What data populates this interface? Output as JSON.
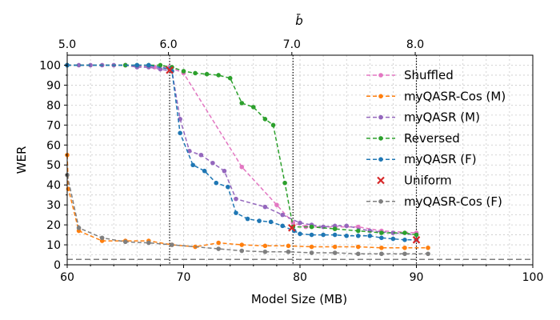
{
  "chart_data": {
    "type": "line",
    "xlabel": "Model Size (MB)",
    "ylabel": "WER",
    "top_xlabel": "b̄",
    "xlim": [
      60,
      100
    ],
    "ylim": [
      0,
      105
    ],
    "x_ticks": [
      60,
      70,
      80,
      90,
      100
    ],
    "y_ticks": [
      0,
      10,
      20,
      30,
      40,
      50,
      60,
      70,
      80,
      90,
      100
    ],
    "top_ticks": [
      {
        "label": "5.0",
        "x": 60
      },
      {
        "label": "6.0",
        "x": 68.7
      },
      {
        "label": "7.0",
        "x": 79.3
      },
      {
        "label": "8.0",
        "x": 89.9
      }
    ],
    "grid": true,
    "legend_position": "right",
    "vlines": [
      68.8,
      79.4,
      90.0
    ],
    "hline": 2.7,
    "series": [
      {
        "name": "Shuffled",
        "color": "#e377c2",
        "marker": "circle",
        "dashed": true,
        "x": [
          60.0,
          65.0,
          67.5,
          68.8,
          70.0,
          75.0,
          78.0,
          79.4,
          80.5,
          83.0,
          85.0,
          87.0,
          90.0
        ],
        "y": [
          100,
          100,
          99,
          99,
          96,
          49,
          30,
          21,
          19,
          19,
          19,
          17,
          16
        ]
      },
      {
        "name": "myQASR-Cos (M)",
        "color": "#ff7f0e",
        "marker": "circle",
        "dashed": true,
        "x": [
          60.0,
          60.1,
          61.0,
          63.0,
          65.0,
          67.0,
          69.0,
          71.0,
          73.0,
          75.0,
          77.0,
          79.0,
          81.0,
          83.0,
          85.0,
          87.0,
          89.0,
          91.0
        ],
        "y": [
          55,
          38,
          17,
          12,
          12,
          12,
          10,
          9,
          11,
          10,
          9.5,
          9.5,
          9,
          9,
          9,
          8.5,
          8.5,
          8.5
        ]
      },
      {
        "name": "myQASR (M)",
        "color": "#9467bd",
        "marker": "circle",
        "dashed": true,
        "x": [
          60.0,
          61.0,
          62.0,
          63.0,
          64.0,
          65.0,
          66.0,
          67.0,
          68.0,
          69.0,
          69.7,
          70.5,
          71.5,
          72.5,
          73.5,
          74.5,
          77.0,
          78.5,
          80.0,
          81.0,
          82.0,
          83.0,
          84.0,
          86.0,
          88.0,
          90.0
        ],
        "y": [
          100,
          100,
          100,
          100,
          100,
          100,
          99,
          99,
          98,
          97,
          73,
          57,
          55,
          51,
          47,
          33,
          29,
          25,
          21,
          20,
          19,
          19.5,
          19.5,
          17,
          16,
          15
        ]
      },
      {
        "name": "Reversed",
        "color": "#2ca02c",
        "marker": "circle",
        "dashed": true,
        "x": [
          60.0,
          65.0,
          66.0,
          67.0,
          68.0,
          69.0,
          70.0,
          71.0,
          72.0,
          73.0,
          74.0,
          75.0,
          76.0,
          77.0,
          77.7,
          78.7,
          79.4,
          81.0,
          83.0,
          85.0,
          87.0,
          89.0,
          90.0
        ],
        "y": [
          100,
          100,
          100,
          100,
          100,
          99,
          97,
          96,
          95.5,
          95,
          93.5,
          81,
          79,
          73,
          70,
          41,
          19,
          19,
          18,
          17,
          16,
          16,
          15
        ]
      },
      {
        "name": "myQASR (F)",
        "color": "#1f77b4",
        "marker": "circle",
        "dashed": true,
        "x": [
          60.0,
          66.0,
          67.0,
          68.8,
          69.0,
          69.7,
          70.8,
          71.8,
          72.8,
          73.8,
          74.5,
          75.5,
          76.5,
          77.5,
          78.5,
          79.5,
          80.0,
          81.0,
          82.0,
          83.0,
          84.0,
          85.0,
          86.0,
          87.0,
          88.0,
          89.0,
          90.0
        ],
        "y": [
          100,
          100,
          100,
          98,
          97,
          66,
          50,
          47,
          41,
          39,
          26,
          23,
          22,
          21.5,
          19.5,
          17,
          15.5,
          15,
          15,
          15,
          14.5,
          14.5,
          14.5,
          13.5,
          13,
          12.5,
          12.5
        ]
      },
      {
        "name": "Uniform",
        "color": "#d62728",
        "marker": "x",
        "dashed": false,
        "x": [
          68.8,
          79.3,
          90.0
        ],
        "y": [
          97.5,
          18.5,
          12.5
        ]
      },
      {
        "name": "myQASR-Cos (F)",
        "color": "#7f7f7f",
        "marker": "circle",
        "dashed": true,
        "x": [
          60.0,
          61.0,
          63.0,
          65.0,
          67.0,
          69.0,
          73.0,
          75.0,
          77.0,
          79.0,
          81.0,
          83.0,
          85.0,
          87.0,
          89.0,
          91.0
        ],
        "y": [
          45,
          18.5,
          13.5,
          11.5,
          11,
          10,
          8,
          7,
          6.5,
          6.5,
          6,
          6,
          5.5,
          5.5,
          5.5,
          5.5
        ]
      }
    ]
  }
}
